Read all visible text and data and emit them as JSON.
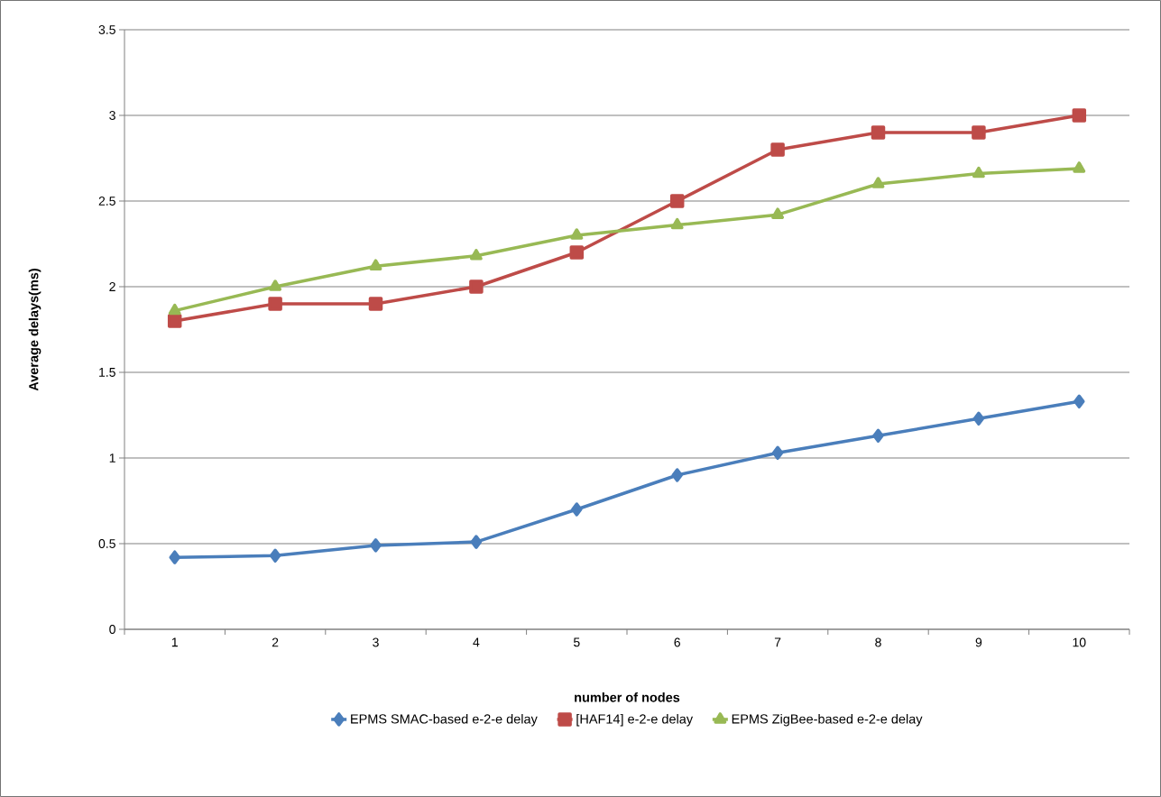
{
  "chart_data": {
    "type": "line",
    "xlabel": "number of nodes",
    "ylabel": "Average delays(ms)",
    "categories": [
      "1",
      "2",
      "3",
      "4",
      "5",
      "6",
      "7",
      "8",
      "9",
      "10"
    ],
    "series": [
      {
        "name": "EPMS SMAC-based e-2-e delay",
        "color": "#4a7ebb",
        "marker": "diamond",
        "values": [
          0.42,
          0.43,
          0.49,
          0.51,
          0.7,
          0.9,
          1.03,
          1.13,
          1.23,
          1.33
        ]
      },
      {
        "name": "[HAF14] e-2-e delay",
        "color": "#be4b48",
        "marker": "square",
        "values": [
          1.8,
          1.9,
          1.9,
          2.0,
          2.2,
          2.5,
          2.8,
          2.9,
          2.9,
          3.0
        ]
      },
      {
        "name": "EPMS ZigBee-based e-2-e delay",
        "color": "#98b954",
        "marker": "triangle",
        "values": [
          1.86,
          2.0,
          2.12,
          2.18,
          2.3,
          2.36,
          2.42,
          2.6,
          2.66,
          2.69
        ]
      }
    ],
    "ylim": [
      0,
      3.5
    ],
    "yticks": [
      0,
      0.5,
      1,
      1.5,
      2,
      2.5,
      3,
      3.5
    ],
    "grid": "y",
    "legend": "bottom",
    "line_style": "solid"
  }
}
